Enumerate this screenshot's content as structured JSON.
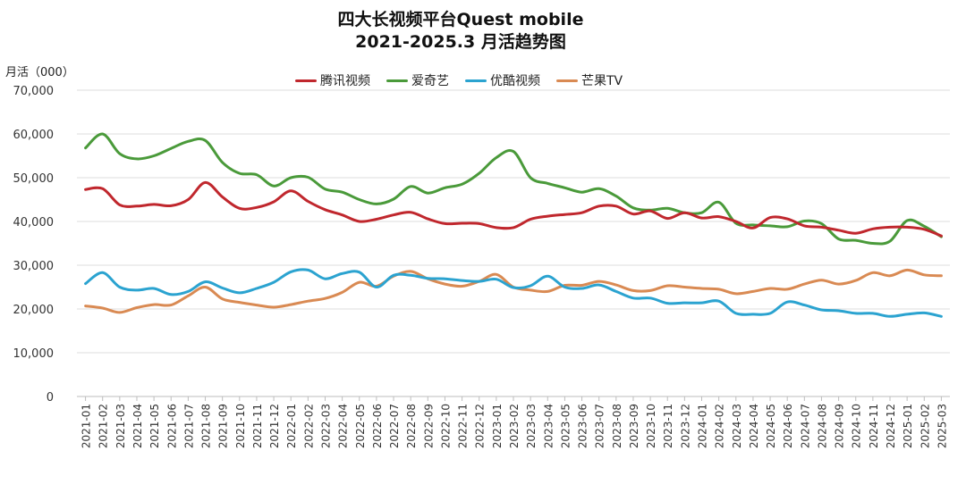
{
  "chart_data": {
    "type": "line",
    "title": [
      "四大长视频平台Quest mobile",
      "2021-2025.3 月活趋势图"
    ],
    "ylabel": "月活（000）",
    "ylim": [
      0,
      70000
    ],
    "yticks": [
      0,
      10000,
      20000,
      30000,
      40000,
      50000,
      60000,
      70000
    ],
    "ytick_labels": [
      "0",
      "10,000",
      "20,000",
      "30,000",
      "40,000",
      "50,000",
      "60,000",
      "70,000"
    ],
    "grid": true,
    "legend_position": "top",
    "categories": [
      "2021-01",
      "2021-02",
      "2021-03",
      "2021-04",
      "2021-05",
      "2021-06",
      "2021-07",
      "2021-08",
      "2021-09",
      "2021-10",
      "2021-11",
      "2021-12",
      "2022-01",
      "2022-02",
      "2022-03",
      "2022-04",
      "2022-05",
      "2022-06",
      "2022-07",
      "2022-08",
      "2022-09",
      "2022-10",
      "2022-11",
      "2022-12",
      "2023-01",
      "2023-02",
      "2023-03",
      "2023-04",
      "2023-05",
      "2023-06",
      "2023-07",
      "2023-08",
      "2023-09",
      "2023-10",
      "2023-11",
      "2023-12",
      "2024-01",
      "2024-02",
      "2024-03",
      "2024-04",
      "2024-05",
      "2024-06",
      "2024-07",
      "2024-08",
      "2024-09",
      "2024-10",
      "2024-11",
      "2024-12",
      "2025-01",
      "2025-02",
      "2025-03"
    ],
    "series": [
      {
        "name": "腾讯视频",
        "color": "#c0272d",
        "values": [
          47300,
          47500,
          43800,
          43500,
          43900,
          43600,
          45000,
          48900,
          45600,
          43000,
          43200,
          44500,
          47000,
          44600,
          42700,
          41500,
          40000,
          40500,
          41500,
          42100,
          40600,
          39500,
          39600,
          39500,
          38600,
          38600,
          40500,
          41200,
          41600,
          42000,
          43500,
          43500,
          41700,
          42400,
          40700,
          42000,
          40800,
          41100,
          40000,
          38500,
          40900,
          40600,
          39000,
          38700,
          38000,
          37300,
          38300,
          38700,
          38700,
          38200,
          36700
        ]
      },
      {
        "name": "爱奇艺",
        "color": "#4a9a3a",
        "values": [
          56800,
          60000,
          55500,
          54300,
          55000,
          56700,
          58300,
          58500,
          53500,
          51000,
          50700,
          48100,
          50000,
          50100,
          47400,
          46700,
          45000,
          44000,
          45100,
          48000,
          46500,
          47700,
          48500,
          51000,
          54600,
          56000,
          50000,
          48700,
          47700,
          46700,
          47500,
          45800,
          43100,
          42600,
          43000,
          42000,
          42000,
          44400,
          39600,
          39200,
          39000,
          38800,
          40100,
          39500,
          36000,
          35700,
          35000,
          35500,
          40200,
          38900,
          36500
        ]
      },
      {
        "name": "优酷视频",
        "color": "#2ba3d0",
        "values": [
          25800,
          28300,
          25000,
          24300,
          24700,
          23300,
          24000,
          26200,
          24800,
          23700,
          24700,
          26100,
          28500,
          28900,
          26900,
          28100,
          28400,
          25000,
          27700,
          27700,
          27000,
          26900,
          26500,
          26300,
          26800,
          24900,
          25300,
          27500,
          25000,
          24700,
          25500,
          24000,
          22500,
          22500,
          21300,
          21400,
          21400,
          21800,
          19000,
          18800,
          19000,
          21600,
          20900,
          19800,
          19600,
          19000,
          19000,
          18300,
          18800,
          19100,
          18300
        ]
      },
      {
        "name": "芒果TV",
        "color": "#d98a53",
        "values": [
          20700,
          20200,
          19200,
          20300,
          21000,
          20900,
          23000,
          25000,
          22300,
          21500,
          20900,
          20400,
          21000,
          21800,
          22400,
          23800,
          26100,
          25200,
          27500,
          28600,
          26900,
          25700,
          25200,
          26300,
          27900,
          25000,
          24300,
          24000,
          25400,
          25400,
          26300,
          25500,
          24200,
          24200,
          25300,
          25000,
          24700,
          24500,
          23500,
          24000,
          24700,
          24500,
          25700,
          26600,
          25700,
          26500,
          28300,
          27600,
          28900,
          27800,
          27600
        ]
      }
    ]
  }
}
